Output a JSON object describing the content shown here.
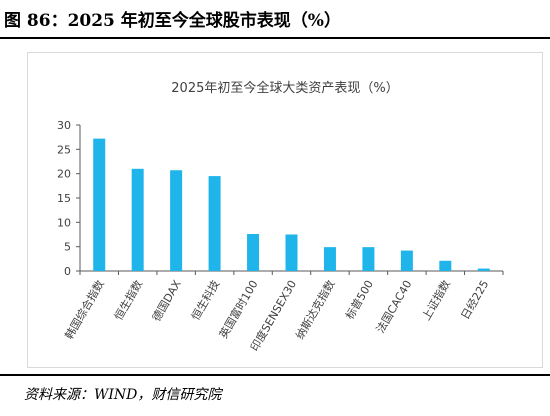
{
  "header": {
    "title": "图 86：2025 年初至今全球股市表现（%）"
  },
  "footer": {
    "source": "资料来源：WIND，财信研究院"
  },
  "colors": {
    "bar": "#1fb5ea",
    "axis": "#595959",
    "text": "#404040",
    "rule": "#000000"
  },
  "chart_data": {
    "type": "bar",
    "title": "2025年初至今全球大类资产表现（%）",
    "categories": [
      "韩国综合指数",
      "恒生指数",
      "德国DAX",
      "恒生科技",
      "英国富时100",
      "印度SENSEX30",
      "纳斯达克指数",
      "标普500",
      "法国CAC40",
      "上证指数",
      "日经225"
    ],
    "values": [
      27.2,
      21.0,
      20.7,
      19.5,
      7.6,
      7.5,
      4.9,
      4.9,
      4.2,
      2.1,
      0.5
    ],
    "ylim": [
      0,
      30
    ],
    "yticks": [
      0,
      5,
      10,
      15,
      20,
      25,
      30
    ],
    "grid": false,
    "legend": "none"
  }
}
